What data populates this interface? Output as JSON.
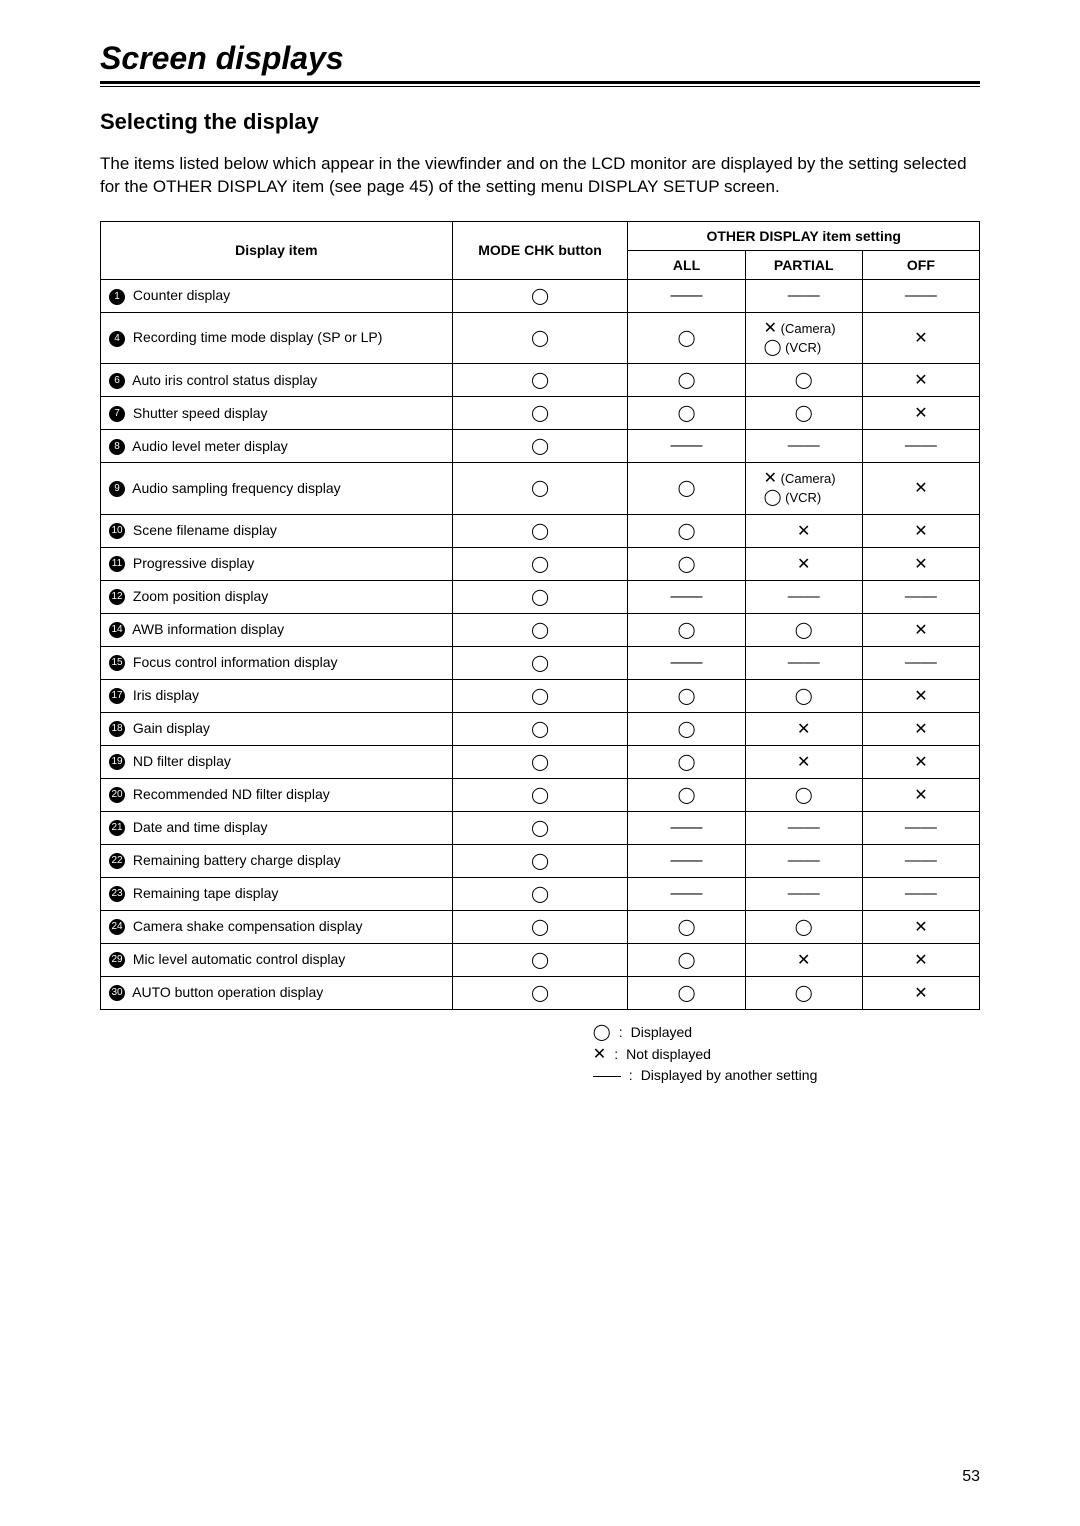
{
  "page": {
    "title": "Screen displays",
    "section_title": "Selecting the display",
    "intro": "The items listed below which appear in the viewfinder and on the LCD monitor are displayed by the setting selected for the OTHER DISPLAY item (see page 45) of the setting menu DISPLAY SETUP screen.",
    "page_number": "53"
  },
  "symbols": {
    "circle": "◯",
    "cross": "✕",
    "dash": "——"
  },
  "table": {
    "header_display_item": "Display item",
    "header_mode": "MODE CHK button",
    "header_other": "OTHER DISPLAY item setting",
    "header_all": "ALL",
    "header_partial": "PARTIAL",
    "header_off": "OFF",
    "rows": [
      {
        "num": "1",
        "label": "Counter display",
        "mode": "circle",
        "all": "dash",
        "partial": "dash",
        "off": "dash"
      },
      {
        "num": "4",
        "label": "Recording time mode display (SP or LP)",
        "mode": "circle",
        "all": "circle",
        "partial": "camvcr",
        "off": "cross"
      },
      {
        "num": "6",
        "label": "Auto iris control status display",
        "mode": "circle",
        "all": "circle",
        "partial": "circle",
        "off": "cross"
      },
      {
        "num": "7",
        "label": "Shutter speed display",
        "mode": "circle",
        "all": "circle",
        "partial": "circle",
        "off": "cross"
      },
      {
        "num": "8",
        "label": "Audio level meter display",
        "mode": "circle",
        "all": "dash",
        "partial": "dash",
        "off": "dash"
      },
      {
        "num": "9",
        "label": "Audio sampling frequency display",
        "mode": "circle",
        "all": "circle",
        "partial": "camvcr",
        "off": "cross"
      },
      {
        "num": "10",
        "label": "Scene filename display",
        "mode": "circle",
        "all": "circle",
        "partial": "cross",
        "off": "cross"
      },
      {
        "num": "11",
        "label": "Progressive display",
        "mode": "circle",
        "all": "circle",
        "partial": "cross",
        "off": "cross"
      },
      {
        "num": "12",
        "label": "Zoom position display",
        "mode": "circle",
        "all": "dash",
        "partial": "dash",
        "off": "dash"
      },
      {
        "num": "14",
        "label": "AWB information display",
        "mode": "circle",
        "all": "circle",
        "partial": "circle",
        "off": "cross"
      },
      {
        "num": "15",
        "label": "Focus control information display",
        "mode": "circle",
        "all": "dash",
        "partial": "dash",
        "off": "dash"
      },
      {
        "num": "17",
        "label": "Iris display",
        "mode": "circle",
        "all": "circle",
        "partial": "circle",
        "off": "cross"
      },
      {
        "num": "18",
        "label": "Gain display",
        "mode": "circle",
        "all": "circle",
        "partial": "cross",
        "off": "cross"
      },
      {
        "num": "19",
        "label": "ND filter display",
        "mode": "circle",
        "all": "circle",
        "partial": "cross",
        "off": "cross"
      },
      {
        "num": "20",
        "label": "Recommended ND filter display",
        "mode": "circle",
        "all": "circle",
        "partial": "circle",
        "off": "cross"
      },
      {
        "num": "21",
        "label": "Date and time display",
        "mode": "circle",
        "all": "dash",
        "partial": "dash",
        "off": "dash"
      },
      {
        "num": "22",
        "label": "Remaining battery charge display",
        "mode": "circle",
        "all": "dash",
        "partial": "dash",
        "off": "dash"
      },
      {
        "num": "23",
        "label": "Remaining tape display",
        "mode": "circle",
        "all": "dash",
        "partial": "dash",
        "off": "dash"
      },
      {
        "num": "24",
        "label": "Camera shake compensation display",
        "mode": "circle",
        "all": "circle",
        "partial": "circle",
        "off": "cross"
      },
      {
        "num": "29",
        "label": "Mic level automatic control display",
        "mode": "circle",
        "all": "circle",
        "partial": "cross",
        "off": "cross"
      },
      {
        "num": "30",
        "label": "AUTO button operation display",
        "mode": "circle",
        "all": "circle",
        "partial": "circle",
        "off": "cross"
      }
    ]
  },
  "legend": {
    "displayed": "Displayed",
    "not_displayed": "Not displayed",
    "by_other": "Displayed by another setting"
  }
}
